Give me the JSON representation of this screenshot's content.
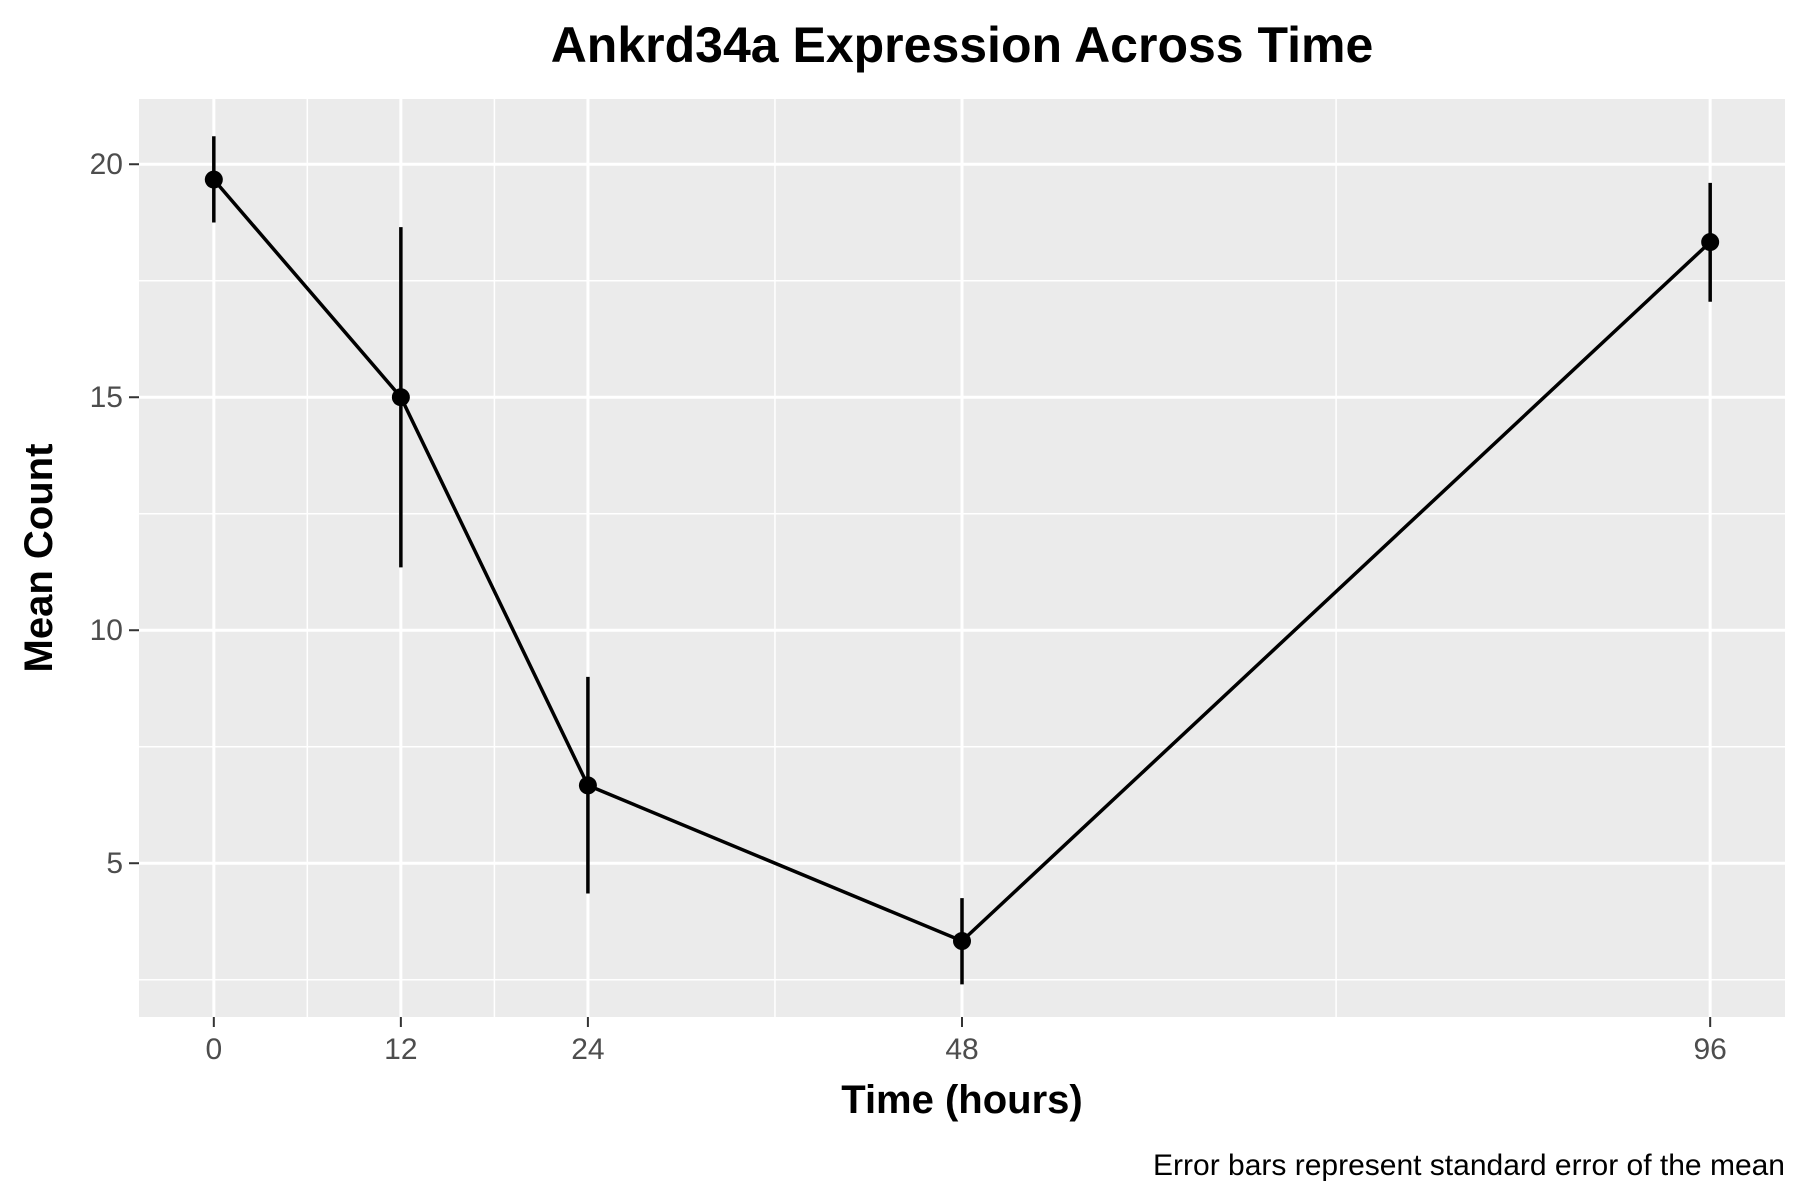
{
  "chart_data": {
    "type": "line",
    "title": "Ankrd34a Expression Across Time",
    "xlabel": "Time (hours)",
    "ylabel": "Mean Count",
    "caption": "Error bars represent standard error of the mean",
    "x": [
      0,
      12,
      24,
      48,
      96
    ],
    "x_ticks": [
      0,
      12,
      24,
      48,
      96
    ],
    "y_ticks": [
      5,
      10,
      15,
      20
    ],
    "xlim": [
      -4.8,
      100.8
    ],
    "ylim": [
      1.7,
      21.4
    ],
    "grid": true,
    "series": [
      {
        "values": [
          19.67,
          15.0,
          6.67,
          3.33,
          18.33
        ],
        "error_low": [
          18.75,
          11.35,
          4.35,
          2.4,
          17.05
        ],
        "error_high": [
          20.6,
          18.65,
          9.0,
          4.25,
          19.6
        ],
        "color": "#000000"
      }
    ],
    "panel_background": "#ebebeb",
    "grid_color": "#ffffff"
  }
}
